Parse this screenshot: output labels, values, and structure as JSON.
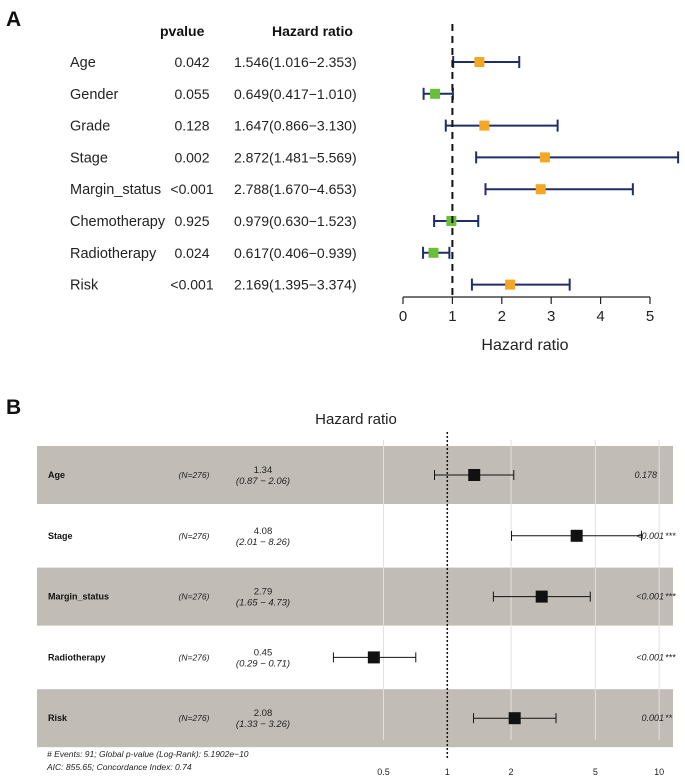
{
  "chart_data": [
    {
      "panel": "A",
      "type": "forest",
      "column_headers": {
        "pvalue": "pvalue",
        "hazard_ratio": "Hazard ratio"
      },
      "rows": [
        {
          "name": "Age",
          "pvalue": "0.042",
          "hr_text": "1.546(1.016−2.353)",
          "hr": 1.546,
          "lo": 1.016,
          "hi": 2.353,
          "color": "#f5a623"
        },
        {
          "name": "Gender",
          "pvalue": "0.055",
          "hr_text": "0.649(0.417−1.010)",
          "hr": 0.649,
          "lo": 0.417,
          "hi": 1.01,
          "color": "#6abf3a"
        },
        {
          "name": "Grade",
          "pvalue": "0.128",
          "hr_text": "1.647(0.866−3.130)",
          "hr": 1.647,
          "lo": 0.866,
          "hi": 3.13,
          "color": "#f5a623"
        },
        {
          "name": "Stage",
          "pvalue": "0.002",
          "hr_text": "2.872(1.481−5.569)",
          "hr": 2.872,
          "lo": 1.481,
          "hi": 5.569,
          "color": "#f5a623"
        },
        {
          "name": "Margin_status",
          "pvalue": "<0.001",
          "hr_text": "2.788(1.670−4.653)",
          "hr": 2.788,
          "lo": 1.67,
          "hi": 4.653,
          "color": "#f5a623"
        },
        {
          "name": "Chemotherapy",
          "pvalue": "0.925",
          "hr_text": "0.979(0.630−1.523)",
          "hr": 0.979,
          "lo": 0.63,
          "hi": 1.523,
          "color": "#6abf3a"
        },
        {
          "name": "Radiotherapy",
          "pvalue": "0.024",
          "hr_text": "0.617(0.406−0.939)",
          "hr": 0.617,
          "lo": 0.406,
          "hi": 0.939,
          "color": "#6abf3a"
        },
        {
          "name": "Risk",
          "pvalue": "<0.001",
          "hr_text": "2.169(1.395−3.374)",
          "hr": 2.169,
          "lo": 1.395,
          "hi": 3.374,
          "color": "#f5a623"
        }
      ],
      "xlim": [
        0,
        5
      ],
      "ticks": [
        0,
        1,
        2,
        3,
        4,
        5
      ],
      "reference": 1,
      "xlabel": "Hazard ratio",
      "ci_color": "#1f2d6b"
    },
    {
      "panel": "B",
      "type": "forest",
      "title": "Hazard ratio",
      "scale": "log",
      "rows": [
        {
          "name": "Age",
          "n": "(N=276)",
          "hr_text": "1.34",
          "ci_text": "(0.87 − 2.06)",
          "hr": 1.34,
          "lo": 0.87,
          "hi": 2.06,
          "p": "0.178",
          "stars": "",
          "shaded": true
        },
        {
          "name": "Stage",
          "n": "(N=276)",
          "hr_text": "4.08",
          "ci_text": "(2.01 − 8.26)",
          "hr": 4.08,
          "lo": 2.01,
          "hi": 8.26,
          "p": "<0.001",
          "stars": "***",
          "shaded": false
        },
        {
          "name": "Margin_status",
          "n": "(N=276)",
          "hr_text": "2.79",
          "ci_text": "(1.65 − 4.73)",
          "hr": 2.79,
          "lo": 1.65,
          "hi": 4.73,
          "p": "<0.001",
          "stars": "***",
          "shaded": true
        },
        {
          "name": "Radiotherapy",
          "n": "(N=276)",
          "hr_text": "0.45",
          "ci_text": "(0.29 − 0.71)",
          "hr": 0.45,
          "lo": 0.29,
          "hi": 0.71,
          "p": "<0.001",
          "stars": "***",
          "shaded": false
        },
        {
          "name": "Risk",
          "n": "(N=276)",
          "hr_text": "2.08",
          "ci_text": "(1.33 − 3.26)",
          "hr": 2.08,
          "lo": 1.33,
          "hi": 3.26,
          "p": "0.001",
          "stars": "**",
          "shaded": true
        }
      ],
      "ticks": [
        0.5,
        1,
        2,
        5,
        10
      ],
      "tick_labels": [
        "0.5",
        "1",
        "2",
        "5",
        "10"
      ],
      "reference": 1,
      "footnote_1": "# Events: 91; Global p-value (Log-Rank): 5.1902e−10",
      "footnote_2": "AIC: 855.65; Concordance Index: 0.74",
      "shade_color": "#c2bcb6"
    }
  ],
  "panel_labels": {
    "a": "A",
    "b": "B"
  }
}
